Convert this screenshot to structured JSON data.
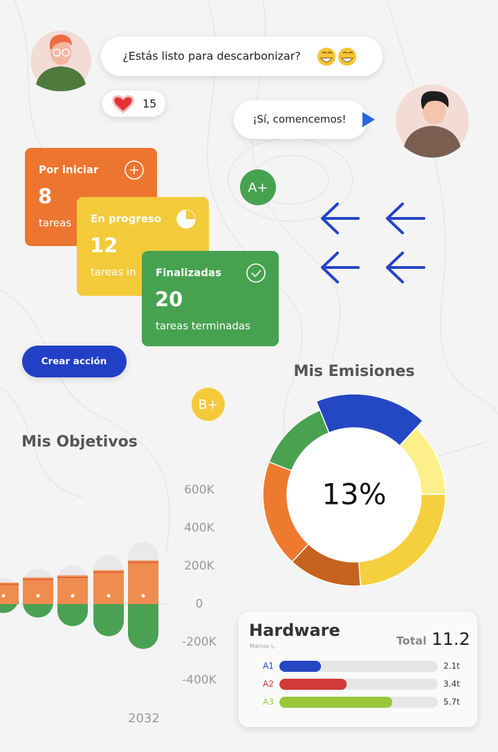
{
  "chat": {
    "messages": [
      {
        "text": "¿Estás listo para descarbonizar?"
      },
      {
        "text": "¡Sí, comencemos!"
      }
    ],
    "likes": 15
  },
  "cards": [
    {
      "title": "Por iniciar",
      "count": 8,
      "caption": "tareas",
      "color": "#ec7530"
    },
    {
      "title": "En progreso",
      "count": 12,
      "caption": "tareas in",
      "color": "#f3ca3a"
    },
    {
      "title": "Finalizadas",
      "count": 20,
      "caption": "tareas terminadas",
      "color": "#47a250"
    }
  ],
  "badges": [
    {
      "text": "A+",
      "color": "#47a250"
    },
    {
      "text": "B+",
      "color": "#f3ca3a"
    }
  ],
  "button": "Crear acción",
  "chart_data": [
    {
      "type": "bar",
      "title": "Mis Objetivos",
      "categories": [
        null,
        null,
        null,
        null,
        "2032"
      ],
      "series": [
        {
          "color": "#e9e9e9",
          "values": [
            138000,
            187000,
            204000,
            258000,
            327000
          ]
        },
        {
          "color": "#ef8c4f",
          "values": [
            113000,
            140000,
            151000,
            178000,
            229000
          ]
        },
        {
          "color": "#4aa153",
          "values": [
            -47000,
            -71000,
            -116000,
            -169000,
            -236000
          ]
        }
      ],
      "ylim": [
        -400000,
        600000
      ],
      "yticks": [
        {
          "value": 600000,
          "label": "600K"
        },
        {
          "value": 400000,
          "label": "400K"
        },
        {
          "value": 200000,
          "label": "200K"
        },
        0,
        {
          "value": -200000,
          "label": "-200K"
        },
        {
          "value": -400000,
          "label": "-400K"
        }
      ]
    },
    {
      "type": "pie",
      "title": "Mis Emisiones",
      "center_label": "13%",
      "values": [
        18,
        13,
        24,
        13,
        19,
        13
      ],
      "colors": [
        "#2447c4",
        "#fdf08a",
        "#f4d03f",
        "#c5621f",
        "#ee7a30",
        "#4aa150"
      ]
    },
    {
      "type": "hbar",
      "title": "Hardware",
      "subtitle": "Marcos L.",
      "total_label": "Total",
      "total": 11.2,
      "categories": [
        "A1",
        "A2",
        "A3"
      ],
      "values": [
        2.1,
        3.4,
        5.7
      ],
      "value_labels": [
        "2.1t",
        "3.4t",
        "5.7t"
      ],
      "colors": [
        "#2447c4",
        "#d13a36",
        "#98c83a"
      ],
      "xlim": [
        0,
        8
      ]
    }
  ]
}
